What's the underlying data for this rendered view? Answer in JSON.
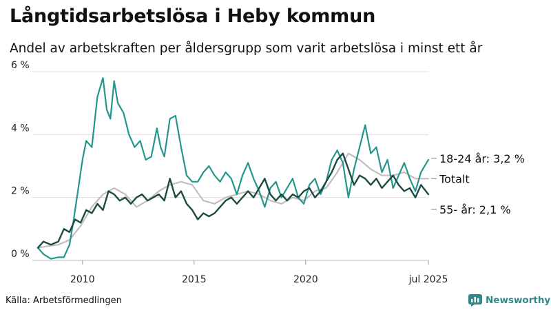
{
  "header": {
    "title": "Långtidsarbetslösa i Heby kommun",
    "subtitle": "Andel av arbetskraften per åldersgrupp som varit arbetslösa i minst ett år"
  },
  "footer": {
    "source": "Källa: Arbetsförmedlingen",
    "brand": "Newsworthy",
    "brand_icon": "newsworthy-logo-icon"
  },
  "colors": {
    "youth": "#23968c",
    "total": "#c3bdc2",
    "senior": "#1d4a40",
    "grid": "#dddddd",
    "axis": "#bbbbbb",
    "brand": "#2e8a8a"
  },
  "chart_data": {
    "type": "line",
    "title": "Långtidsarbetslösa i Heby kommun",
    "subtitle": "Andel av arbetskraften per åldersgrupp som varit arbetslösa i minst ett år",
    "xlabel": "",
    "ylabel": "",
    "xlim": [
      "2008-01",
      "2025-07"
    ],
    "ylim": [
      0,
      6
    ],
    "y_ticks": [
      {
        "value": 0,
        "label": "0 %"
      },
      {
        "value": 2,
        "label": "2 %"
      },
      {
        "value": 4,
        "label": "4 %"
      },
      {
        "value": 6,
        "label": "6 %"
      }
    ],
    "x_ticks": [
      {
        "value": "2010-01",
        "label": "2010"
      },
      {
        "value": "2015-01",
        "label": "2015"
      },
      {
        "value": "2020-01",
        "label": "2020"
      },
      {
        "value": "2025-07",
        "label": "jul 2025"
      }
    ],
    "grid": true,
    "legend": "end-of-line labels",
    "series": [
      {
        "key": "youth",
        "end_label": "18-24 år: 3,2 %",
        "points": [
          [
            "2008-01",
            0.4
          ],
          [
            "2008-04",
            0.2
          ],
          [
            "2008-08",
            0.05
          ],
          [
            "2008-12",
            0.1
          ],
          [
            "2009-03",
            0.1
          ],
          [
            "2009-06",
            0.5
          ],
          [
            "2009-08",
            1.2
          ],
          [
            "2009-10",
            2.0
          ],
          [
            "2010-01",
            3.2
          ],
          [
            "2010-03",
            3.8
          ],
          [
            "2010-06",
            3.6
          ],
          [
            "2010-09",
            5.2
          ],
          [
            "2010-12",
            5.8
          ],
          [
            "2011-02",
            4.8
          ],
          [
            "2011-04",
            4.5
          ],
          [
            "2011-06",
            5.7
          ],
          [
            "2011-08",
            5.0
          ],
          [
            "2011-11",
            4.7
          ],
          [
            "2012-02",
            4.0
          ],
          [
            "2012-05",
            3.6
          ],
          [
            "2012-08",
            3.8
          ],
          [
            "2012-11",
            3.2
          ],
          [
            "2013-02",
            3.3
          ],
          [
            "2013-05",
            4.2
          ],
          [
            "2013-07",
            3.6
          ],
          [
            "2013-09",
            3.3
          ],
          [
            "2013-12",
            4.5
          ],
          [
            "2014-03",
            4.6
          ],
          [
            "2014-06",
            3.6
          ],
          [
            "2014-09",
            2.7
          ],
          [
            "2014-12",
            2.5
          ],
          [
            "2015-03",
            2.5
          ],
          [
            "2015-06",
            2.8
          ],
          [
            "2015-09",
            3.0
          ],
          [
            "2015-12",
            2.7
          ],
          [
            "2016-03",
            2.5
          ],
          [
            "2016-06",
            2.8
          ],
          [
            "2016-09",
            2.6
          ],
          [
            "2016-12",
            2.1
          ],
          [
            "2017-03",
            2.7
          ],
          [
            "2017-06",
            3.1
          ],
          [
            "2017-09",
            2.6
          ],
          [
            "2017-12",
            2.2
          ],
          [
            "2018-03",
            1.7
          ],
          [
            "2018-06",
            2.3
          ],
          [
            "2018-09",
            2.5
          ],
          [
            "2018-12",
            2.0
          ],
          [
            "2019-03",
            2.3
          ],
          [
            "2019-06",
            2.6
          ],
          [
            "2019-09",
            2.0
          ],
          [
            "2019-12",
            1.8
          ],
          [
            "2020-03",
            2.4
          ],
          [
            "2020-06",
            2.6
          ],
          [
            "2020-09",
            2.1
          ],
          [
            "2020-12",
            2.5
          ],
          [
            "2021-03",
            3.2
          ],
          [
            "2021-06",
            3.5
          ],
          [
            "2021-09",
            3.1
          ],
          [
            "2021-12",
            2.0
          ],
          [
            "2022-03",
            2.9
          ],
          [
            "2022-06",
            3.6
          ],
          [
            "2022-09",
            4.3
          ],
          [
            "2022-12",
            3.4
          ],
          [
            "2023-03",
            3.6
          ],
          [
            "2023-06",
            2.8
          ],
          [
            "2023-09",
            3.2
          ],
          [
            "2023-12",
            2.3
          ],
          [
            "2024-03",
            2.7
          ],
          [
            "2024-06",
            3.1
          ],
          [
            "2024-09",
            2.6
          ],
          [
            "2024-12",
            2.2
          ],
          [
            "2025-03",
            2.8
          ],
          [
            "2025-07",
            3.2
          ]
        ]
      },
      {
        "key": "total",
        "end_label": "Totalt",
        "points": [
          [
            "2008-01",
            0.4
          ],
          [
            "2008-06",
            0.45
          ],
          [
            "2008-12",
            0.5
          ],
          [
            "2009-06",
            0.65
          ],
          [
            "2009-12",
            1.1
          ],
          [
            "2010-06",
            1.7
          ],
          [
            "2010-12",
            2.1
          ],
          [
            "2011-06",
            2.3
          ],
          [
            "2011-12",
            2.1
          ],
          [
            "2012-06",
            1.7
          ],
          [
            "2012-12",
            1.9
          ],
          [
            "2013-06",
            2.2
          ],
          [
            "2013-12",
            2.4
          ],
          [
            "2014-06",
            2.5
          ],
          [
            "2014-12",
            2.4
          ],
          [
            "2015-06",
            1.9
          ],
          [
            "2015-12",
            1.8
          ],
          [
            "2016-06",
            2.0
          ],
          [
            "2016-12",
            2.1
          ],
          [
            "2017-06",
            2.2
          ],
          [
            "2017-12",
            2.1
          ],
          [
            "2018-06",
            1.9
          ],
          [
            "2018-12",
            1.8
          ],
          [
            "2019-06",
            2.0
          ],
          [
            "2019-12",
            1.9
          ],
          [
            "2020-06",
            2.2
          ],
          [
            "2020-12",
            2.3
          ],
          [
            "2021-06",
            2.8
          ],
          [
            "2021-12",
            3.4
          ],
          [
            "2022-06",
            3.2
          ],
          [
            "2022-12",
            2.9
          ],
          [
            "2023-06",
            2.7
          ],
          [
            "2023-12",
            2.7
          ],
          [
            "2024-06",
            2.8
          ],
          [
            "2024-12",
            2.6
          ],
          [
            "2025-07",
            2.6
          ]
        ]
      },
      {
        "key": "senior",
        "end_label": "55- år: 2,1 %",
        "points": [
          [
            "2008-01",
            0.4
          ],
          [
            "2008-04",
            0.6
          ],
          [
            "2008-08",
            0.5
          ],
          [
            "2008-12",
            0.6
          ],
          [
            "2009-03",
            1.0
          ],
          [
            "2009-06",
            0.9
          ],
          [
            "2009-09",
            1.3
          ],
          [
            "2009-12",
            1.2
          ],
          [
            "2010-03",
            1.6
          ],
          [
            "2010-06",
            1.5
          ],
          [
            "2010-09",
            1.8
          ],
          [
            "2010-12",
            1.6
          ],
          [
            "2011-03",
            2.2
          ],
          [
            "2011-06",
            2.1
          ],
          [
            "2011-09",
            1.9
          ],
          [
            "2011-12",
            2.0
          ],
          [
            "2012-03",
            1.8
          ],
          [
            "2012-06",
            2.0
          ],
          [
            "2012-09",
            2.1
          ],
          [
            "2012-12",
            1.9
          ],
          [
            "2013-03",
            2.0
          ],
          [
            "2013-06",
            2.1
          ],
          [
            "2013-09",
            1.9
          ],
          [
            "2013-12",
            2.6
          ],
          [
            "2014-03",
            2.0
          ],
          [
            "2014-06",
            2.2
          ],
          [
            "2014-09",
            1.8
          ],
          [
            "2014-12",
            1.6
          ],
          [
            "2015-03",
            1.3
          ],
          [
            "2015-06",
            1.5
          ],
          [
            "2015-09",
            1.4
          ],
          [
            "2015-12",
            1.5
          ],
          [
            "2016-03",
            1.7
          ],
          [
            "2016-06",
            1.9
          ],
          [
            "2016-09",
            2.0
          ],
          [
            "2016-12",
            1.8
          ],
          [
            "2017-03",
            2.0
          ],
          [
            "2017-06",
            2.2
          ],
          [
            "2017-09",
            2.0
          ],
          [
            "2017-12",
            2.3
          ],
          [
            "2018-03",
            2.6
          ],
          [
            "2018-06",
            2.1
          ],
          [
            "2018-09",
            1.9
          ],
          [
            "2018-12",
            2.1
          ],
          [
            "2019-03",
            1.9
          ],
          [
            "2019-06",
            2.1
          ],
          [
            "2019-09",
            2.0
          ],
          [
            "2019-12",
            2.2
          ],
          [
            "2020-03",
            2.3
          ],
          [
            "2020-06",
            2.0
          ],
          [
            "2020-09",
            2.2
          ],
          [
            "2020-12",
            2.5
          ],
          [
            "2021-03",
            2.8
          ],
          [
            "2021-06",
            3.2
          ],
          [
            "2021-09",
            3.4
          ],
          [
            "2021-12",
            2.9
          ],
          [
            "2022-03",
            2.4
          ],
          [
            "2022-06",
            2.7
          ],
          [
            "2022-09",
            2.6
          ],
          [
            "2022-12",
            2.4
          ],
          [
            "2023-03",
            2.6
          ],
          [
            "2023-06",
            2.3
          ],
          [
            "2023-09",
            2.5
          ],
          [
            "2023-12",
            2.7
          ],
          [
            "2024-03",
            2.4
          ],
          [
            "2024-06",
            2.2
          ],
          [
            "2024-09",
            2.3
          ],
          [
            "2024-12",
            2.0
          ],
          [
            "2025-03",
            2.4
          ],
          [
            "2025-07",
            2.1
          ]
        ]
      }
    ]
  }
}
